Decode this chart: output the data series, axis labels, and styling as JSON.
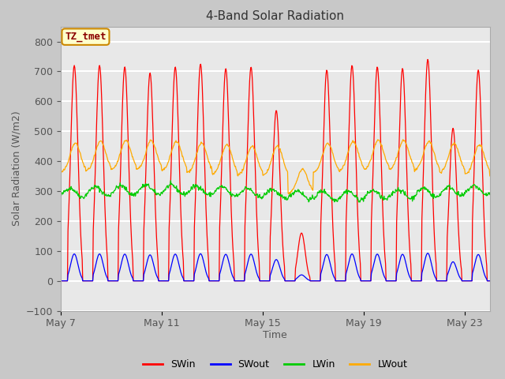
{
  "title": "4-Band Solar Radiation",
  "xlabel": "Time",
  "ylabel": "Solar Radiation (W/m2)",
  "ylim": [
    -100,
    850
  ],
  "yticks": [
    -100,
    0,
    100,
    200,
    300,
    400,
    500,
    600,
    700,
    800
  ],
  "xtick_positions": [
    0,
    4,
    8,
    12,
    16
  ],
  "xtick_labels": [
    "May 7",
    "May 11",
    "May 15",
    "May 19",
    "May 23"
  ],
  "legend_entries": [
    "SWin",
    "SWout",
    "LWin",
    "LWout"
  ],
  "legend_colors": [
    "#ff0000",
    "#0000ff",
    "#00cc00",
    "#ffaa00"
  ],
  "annotation_text": "TZ_tmet",
  "annotation_bg": "#ffffcc",
  "annotation_border": "#cc8800",
  "fig_bg": "#c8c8c8",
  "plot_bg": "#e8e8e8",
  "n_days": 17,
  "start_day": 7
}
